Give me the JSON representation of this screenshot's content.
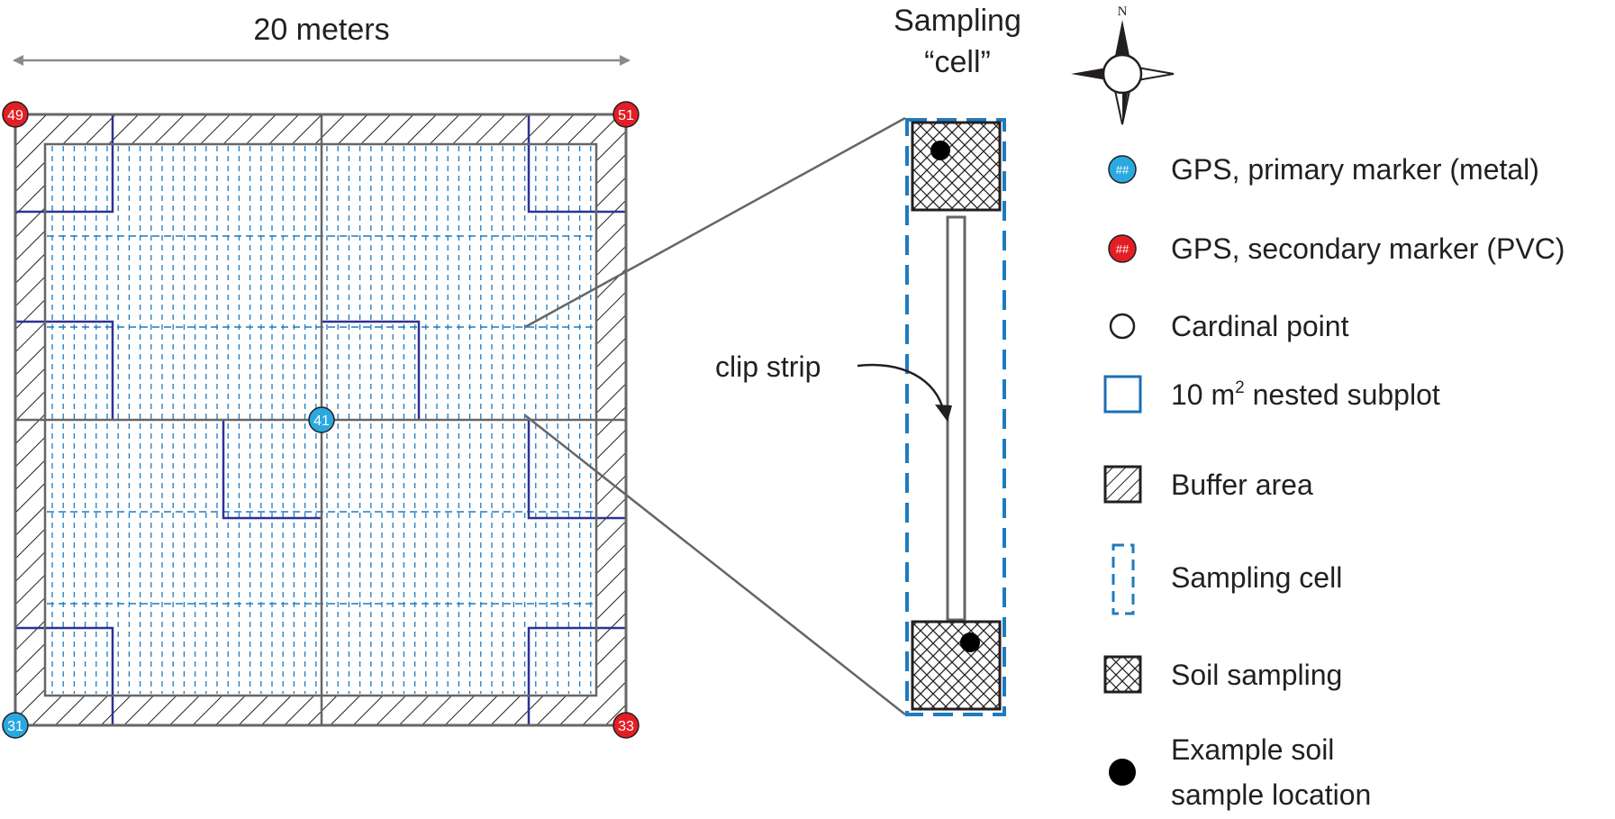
{
  "plot": {
    "width_label": "20 meters",
    "markers": {
      "top_left": "49",
      "top_right": "51",
      "bottom_left": "31",
      "bottom_right": "33",
      "center": "41"
    }
  },
  "cell": {
    "title_line1": "Sampling",
    "title_line2": "“cell”",
    "clip_strip_label": "clip strip"
  },
  "compass": {
    "north_label": "N"
  },
  "legend": {
    "items": [
      {
        "icon": "blue-gps-marker-icon",
        "symbol": "##",
        "label": "GPS, primary marker (metal)"
      },
      {
        "icon": "red-gps-marker-icon",
        "symbol": "##",
        "label": "GPS, secondary marker (PVC)"
      },
      {
        "icon": "cardinal-point-icon",
        "label": "Cardinal point"
      },
      {
        "icon": "nested-subplot-icon",
        "label_prefix": "10 m",
        "label_sup": "2",
        "label_suffix": " nested subplot"
      },
      {
        "icon": "buffer-area-icon",
        "label": "Buffer area"
      },
      {
        "icon": "sampling-cell-icon",
        "label": "Sampling cell"
      },
      {
        "icon": "soil-sampling-icon",
        "label": "Soil sampling"
      },
      {
        "icon": "soil-sample-location-icon",
        "label_line1": "Example soil",
        "label_line2": "sample location"
      }
    ]
  },
  "colors": {
    "gps_primary": "#29a9e0",
    "gps_secondary": "#e31e24",
    "subplot_outline": "#2e3192",
    "sampling_cell_dash": "#1e7bc0",
    "plot_outline": "#666666",
    "text": "#231f20"
  }
}
